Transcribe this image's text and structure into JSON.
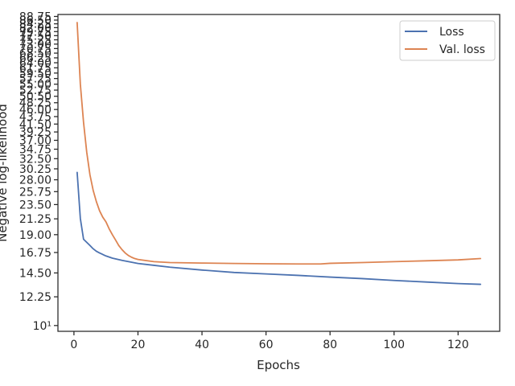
{
  "chart_data": {
    "type": "line",
    "title": "",
    "xlabel": "Epochs",
    "ylabel": "Negative log-likelihood",
    "yscale": "log",
    "xlim": [
      -5,
      133
    ],
    "ylim": [
      9.6,
      90
    ],
    "xticks": [
      0,
      20,
      40,
      60,
      80,
      100,
      120
    ],
    "yticks": [
      10,
      12.25,
      14.5,
      16.75,
      19,
      21.25,
      23.5,
      25.75,
      28,
      30.25,
      32.5,
      34.75,
      37,
      39.25,
      41.5,
      43.75,
      46,
      48.25,
      50.5,
      52.75,
      55,
      57.25,
      59.5,
      61.75,
      64,
      66.25,
      68.5,
      70.75,
      73,
      75.25,
      77.5,
      79.75,
      82,
      84.25,
      86.5,
      88.75
    ],
    "ytick_labels": [
      "10¹",
      "12.25",
      "14.50",
      "16.75",
      "19.00",
      "21.25",
      "23.50",
      "25.75",
      "28.00",
      "30.25",
      "32.50",
      "34.75",
      "37.00",
      "39.25",
      "41.50",
      "43.75",
      "46.00",
      "48.25",
      "50.50",
      "52.75",
      "55.00",
      "57.25",
      "59.50",
      "61.75",
      "64.00",
      "66.25",
      "68.50",
      "70.75",
      "73.00",
      "75.25",
      "77.50",
      "79.75",
      "82.00",
      "84.25",
      "86.50",
      "88.75"
    ],
    "grid": false,
    "legend_position": "top-right",
    "series": [
      {
        "name": "Loss",
        "color": "#4c72b0",
        "x": [
          1,
          2,
          3,
          4,
          5,
          6,
          7,
          8,
          10,
          12,
          15,
          20,
          25,
          30,
          40,
          50,
          60,
          70,
          80,
          90,
          100,
          110,
          120,
          127
        ],
        "y": [
          29.5,
          21.3,
          18.4,
          18.0,
          17.6,
          17.2,
          16.9,
          16.7,
          16.35,
          16.1,
          15.85,
          15.5,
          15.3,
          15.1,
          14.8,
          14.55,
          14.4,
          14.25,
          14.08,
          13.93,
          13.75,
          13.6,
          13.45,
          13.38
        ]
      },
      {
        "name": "Val. loss",
        "color": "#dd8452",
        "x": [
          1,
          2,
          3,
          4,
          5,
          6,
          7,
          8,
          9,
          10,
          11,
          12,
          13,
          14,
          15,
          16,
          17,
          18,
          19,
          20,
          22,
          25,
          30,
          40,
          50,
          60,
          70,
          77,
          80,
          90,
          100,
          110,
          120,
          127
        ],
        "y": [
          85,
          55,
          42,
          34,
          29,
          26,
          24,
          22.5,
          21.5,
          20.8,
          19.8,
          19.0,
          18.3,
          17.6,
          17.1,
          16.7,
          16.4,
          16.2,
          16.05,
          15.95,
          15.85,
          15.7,
          15.6,
          15.55,
          15.5,
          15.47,
          15.45,
          15.45,
          15.52,
          15.6,
          15.7,
          15.8,
          15.9,
          16.05
        ]
      }
    ]
  }
}
